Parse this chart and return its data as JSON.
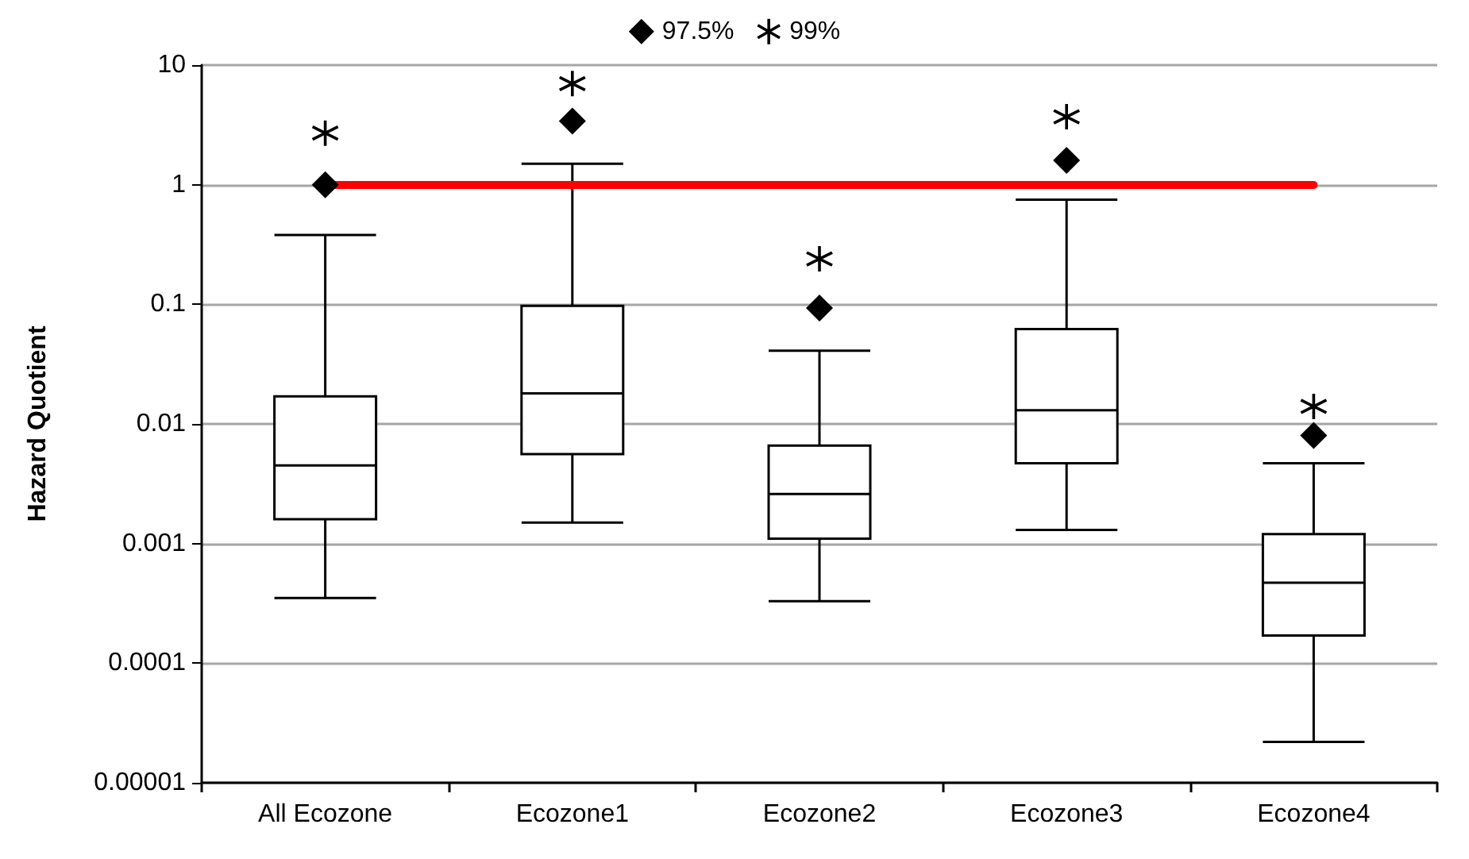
{
  "chart_data": {
    "type": "box",
    "ylabel": "Hazard Quotient",
    "categories": [
      "All Ecozone",
      "Ecozone1",
      "Ecozone2",
      "Ecozone3",
      "Ecozone4"
    ],
    "boxes": [
      {
        "low": 0.00035,
        "q1": 0.0016,
        "median": 0.0045,
        "q3": 0.017,
        "high": 0.38
      },
      {
        "low": 0.0015,
        "q1": 0.0056,
        "median": 0.018,
        "q3": 0.097,
        "high": 1.5
      },
      {
        "low": 0.00033,
        "q1": 0.0011,
        "median": 0.0026,
        "q3": 0.0066,
        "high": 0.041
      },
      {
        "low": 0.0013,
        "q1": 0.0047,
        "median": 0.013,
        "q3": 0.062,
        "high": 0.75
      },
      {
        "low": 2.2e-05,
        "q1": 0.00017,
        "median": 0.00047,
        "q3": 0.0012,
        "high": 0.0047
      }
    ],
    "series": [
      {
        "name": "97.5%",
        "type": "scatter",
        "marker": "diamond",
        "color": "#000000",
        "x": [
          "All Ecozone",
          "Ecozone1",
          "Ecozone2",
          "Ecozone3",
          "Ecozone4"
        ],
        "values": [
          1.0,
          3.4,
          0.093,
          1.6,
          0.008
        ]
      },
      {
        "name": "99%",
        "type": "scatter",
        "marker": "cross",
        "color": "#000000",
        "x": [
          "All Ecozone",
          "Ecozone1",
          "Ecozone2",
          "Ecozone3",
          "Ecozone4"
        ],
        "values": [
          2.7,
          7.0,
          0.24,
          3.7,
          0.014
        ]
      }
    ],
    "color": "#000000",
    "log": true,
    "ylim": [
      1e-05,
      10
    ],
    "yticks": [
      {
        "value": 1e-05,
        "label": "0.00001"
      },
      0.0001,
      0.001,
      0.01,
      0.1,
      1,
      10
    ],
    "ref_lines": [
      {
        "axis": "y",
        "value": 1,
        "color": "#ff0000"
      }
    ],
    "grid": "y",
    "legend": "top"
  }
}
